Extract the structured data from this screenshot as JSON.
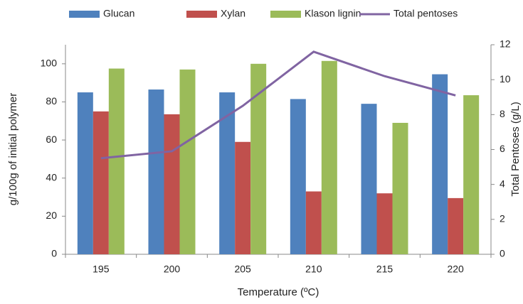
{
  "chart_data": {
    "type": "bar",
    "x_label": "Temperature (ºC)",
    "y_label": "g/100g of initial polymer",
    "y2_label": "Total Pentoses (g/L)",
    "categories": [
      "195",
      "200",
      "205",
      "210",
      "215",
      "220"
    ],
    "series": [
      {
        "name": "Glucan",
        "color": "#4f81bd",
        "values": [
          85,
          86.5,
          85,
          81.5,
          79,
          94.5
        ]
      },
      {
        "name": "Xylan",
        "color": "#c0504d",
        "values": [
          75,
          73.5,
          59,
          33,
          32,
          29.5
        ]
      },
      {
        "name": "Klason lignin",
        "color": "#9bbb59",
        "values": [
          97.5,
          97,
          100,
          101.5,
          69,
          83.5
        ]
      },
      {
        "name": "Total pentoses",
        "color": "#8064a2",
        "type": "line",
        "axis": "y2",
        "values": [
          5.5,
          5.9,
          8.5,
          11.6,
          10.2,
          9.1
        ]
      }
    ],
    "ylim": [
      0,
      110
    ],
    "yticks": [
      0,
      20,
      40,
      60,
      80,
      100
    ],
    "y2lim": [
      0,
      12
    ],
    "y2ticks": [
      0,
      2,
      4,
      6,
      8,
      10,
      12
    ],
    "legend": "top"
  }
}
